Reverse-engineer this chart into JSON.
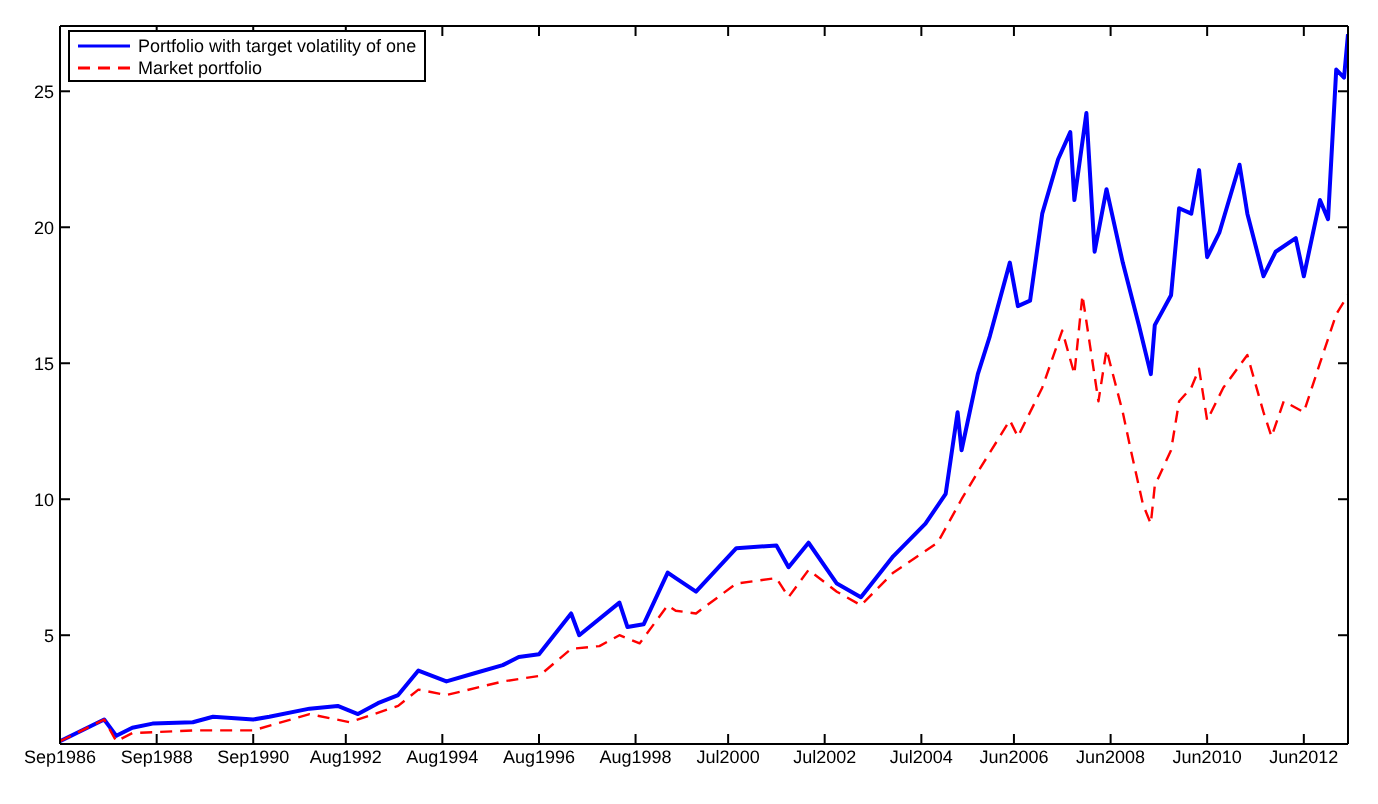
{
  "chart_data": {
    "type": "line",
    "xlim": [
      "1986-09",
      "2013-05"
    ],
    "ylim": [
      1.0,
      27.4
    ],
    "xticks": [
      {
        "value": "1986-09",
        "label": "Sep1986"
      },
      {
        "value": "1988-09",
        "label": "Sep1988"
      },
      {
        "value": "1990-09",
        "label": "Sep1990"
      },
      {
        "value": "1992-08",
        "label": "Aug1992"
      },
      {
        "value": "1994-08",
        "label": "Aug1994"
      },
      {
        "value": "1996-08",
        "label": "Aug1996"
      },
      {
        "value": "1998-08",
        "label": "Aug1998"
      },
      {
        "value": "2000-07",
        "label": "Jul2000"
      },
      {
        "value": "2002-07",
        "label": "Jul2002"
      },
      {
        "value": "2004-07",
        "label": "Jul2004"
      },
      {
        "value": "2006-06",
        "label": "Jun2006"
      },
      {
        "value": "2008-06",
        "label": "Jun2008"
      },
      {
        "value": "2010-06",
        "label": "Jun2010"
      },
      {
        "value": "2012-06",
        "label": "Jun2012"
      }
    ],
    "yticks": [
      5,
      10,
      15,
      20,
      25
    ],
    "legend": "top left",
    "marker": "none",
    "series": [
      {
        "name": "Portfolio with target volatility of one",
        "color": "#0000ff",
        "line_style": "solid",
        "x": [
          "1986-09",
          "1987-08",
          "1987-11",
          "1988-03",
          "1988-08",
          "1989-06",
          "1989-11",
          "1990-09",
          "1991-01",
          "1991-11",
          "1992-06",
          "1992-11",
          "1993-04",
          "1993-09",
          "1994-02",
          "1994-09",
          "1995-04",
          "1995-11",
          "1996-03",
          "1996-08",
          "1997-04",
          "1997-06",
          "1998-04",
          "1998-06",
          "1998-10",
          "1999-04",
          "1999-06",
          "1999-11",
          "2000-09",
          "2001-07",
          "2001-10",
          "2002-03",
          "2002-10",
          "2003-04",
          "2003-12",
          "2004-08",
          "2005-01",
          "2005-04",
          "2005-05",
          "2005-09",
          "2005-12",
          "2006-05",
          "2006-07",
          "2006-10",
          "2007-01",
          "2007-05",
          "2007-08",
          "2007-09",
          "2007-12",
          "2008-02",
          "2008-05",
          "2008-09",
          "2009-01",
          "2009-04",
          "2009-05",
          "2009-09",
          "2009-11",
          "2010-02",
          "2010-04",
          "2010-06",
          "2010-09",
          "2011-02",
          "2011-04",
          "2011-08",
          "2011-11",
          "2012-04",
          "2012-06",
          "2012-10",
          "2012-12",
          "2013-02",
          "2013-04",
          "2013-05"
        ],
        "values": [
          1.1,
          1.9,
          1.3,
          1.6,
          1.75,
          1.8,
          2.0,
          1.9,
          2.0,
          2.3,
          2.4,
          2.1,
          2.5,
          2.8,
          3.7,
          3.3,
          3.6,
          3.9,
          4.2,
          4.3,
          5.8,
          5.0,
          6.2,
          5.3,
          5.4,
          7.3,
          7.1,
          6.6,
          8.2,
          8.3,
          7.5,
          8.4,
          6.9,
          6.4,
          7.9,
          9.1,
          10.2,
          13.2,
          11.8,
          14.6,
          16.0,
          18.7,
          17.1,
          17.3,
          20.5,
          22.5,
          23.5,
          21.0,
          24.2,
          19.1,
          21.4,
          18.7,
          16.4,
          14.6,
          16.4,
          17.5,
          20.7,
          20.5,
          22.1,
          18.9,
          19.8,
          22.3,
          20.5,
          18.2,
          19.1,
          19.6,
          18.2,
          21.0,
          20.3,
          25.8,
          25.5,
          27.1
        ]
      },
      {
        "name": "Market portfolio",
        "color": "#ff0000",
        "line_style": "dashed",
        "x": [
          "1986-09",
          "1987-08",
          "1987-11",
          "1988-03",
          "1989-06",
          "1990-09",
          "1991-11",
          "1992-09",
          "1993-09",
          "1994-02",
          "1994-09",
          "1995-11",
          "1996-08",
          "1997-04",
          "1997-11",
          "1998-04",
          "1998-09",
          "1999-04",
          "1999-06",
          "1999-11",
          "2000-09",
          "2001-07",
          "2001-10",
          "2002-03",
          "2002-10",
          "2003-04",
          "2003-12",
          "2004-11",
          "2005-05",
          "2005-09",
          "2006-05",
          "2006-07",
          "2007-01",
          "2007-06",
          "2007-09",
          "2007-11",
          "2008-03",
          "2008-05",
          "2008-09",
          "2008-11",
          "2009-02",
          "2009-04",
          "2009-05",
          "2009-09",
          "2009-11",
          "2010-02",
          "2010-04",
          "2010-06",
          "2010-10",
          "2011-04",
          "2011-08",
          "2011-10",
          "2012-01",
          "2012-06",
          "2012-10",
          "2013-02",
          "2013-05"
        ],
        "values": [
          1.1,
          1.9,
          1.1,
          1.4,
          1.5,
          1.5,
          2.1,
          1.8,
          2.4,
          3.0,
          2.8,
          3.3,
          3.5,
          4.5,
          4.6,
          5.0,
          4.7,
          6.1,
          5.9,
          5.8,
          6.9,
          7.1,
          6.4,
          7.4,
          6.6,
          6.1,
          7.3,
          8.4,
          10.0,
          11.0,
          12.9,
          12.3,
          14.1,
          16.2,
          14.6,
          17.5,
          13.6,
          15.5,
          13.2,
          11.8,
          9.8,
          9.1,
          10.5,
          11.8,
          13.6,
          14.1,
          14.8,
          12.9,
          14.1,
          15.3,
          13.2,
          12.3,
          13.6,
          13.2,
          15.0,
          16.8,
          17.5
        ]
      }
    ]
  }
}
